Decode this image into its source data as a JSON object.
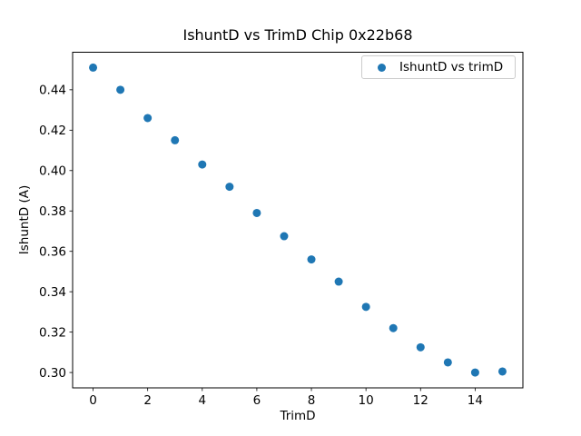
{
  "chart_data": {
    "type": "scatter",
    "title": "IshuntD vs TrimD Chip 0x22b68",
    "xlabel": "TrimD",
    "ylabel": "IshuntD (A)",
    "grid": false,
    "xlim": [
      -0.75,
      15.75
    ],
    "ylim": [
      0.2924,
      0.4586
    ],
    "xticks": [
      0,
      2,
      4,
      6,
      8,
      10,
      12,
      14
    ],
    "yticks": [
      0.3,
      0.32,
      0.34,
      0.36,
      0.38,
      0.4,
      0.42,
      0.44
    ],
    "legend": {
      "position": "upper right",
      "entries": [
        "IshuntD vs trimD"
      ]
    },
    "series": [
      {
        "name": "IshuntD vs trimD",
        "color": "#1f77b4",
        "x": [
          0,
          1,
          2,
          3,
          4,
          5,
          6,
          7,
          8,
          9,
          10,
          11,
          12,
          13,
          14,
          15
        ],
        "y": [
          0.451,
          0.44,
          0.426,
          0.415,
          0.403,
          0.392,
          0.379,
          0.3675,
          0.356,
          0.345,
          0.3325,
          0.322,
          0.3125,
          0.305,
          0.3,
          0.3005
        ]
      }
    ]
  }
}
